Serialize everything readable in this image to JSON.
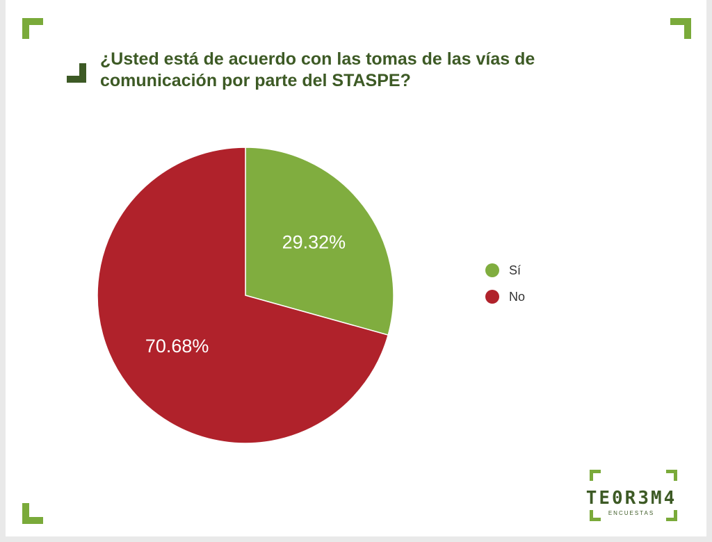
{
  "colors": {
    "si": "#80ad3f",
    "no": "#b0222b",
    "accent_light": "#7aaa3a",
    "accent_dark": "#3d5a25"
  },
  "chart_data": {
    "type": "pie",
    "title": "¿Usted está de acuerdo con las tomas de las vías de comunicación por parte del STASPE?",
    "slices": [
      {
        "label": "Sí",
        "value": 29.32,
        "display": "29.32%"
      },
      {
        "label": "No",
        "value": 70.68,
        "display": "70.68%"
      }
    ],
    "legend_position": "right"
  },
  "logo": {
    "word": "TE0R3M4",
    "sub": "ENCUESTAS"
  }
}
